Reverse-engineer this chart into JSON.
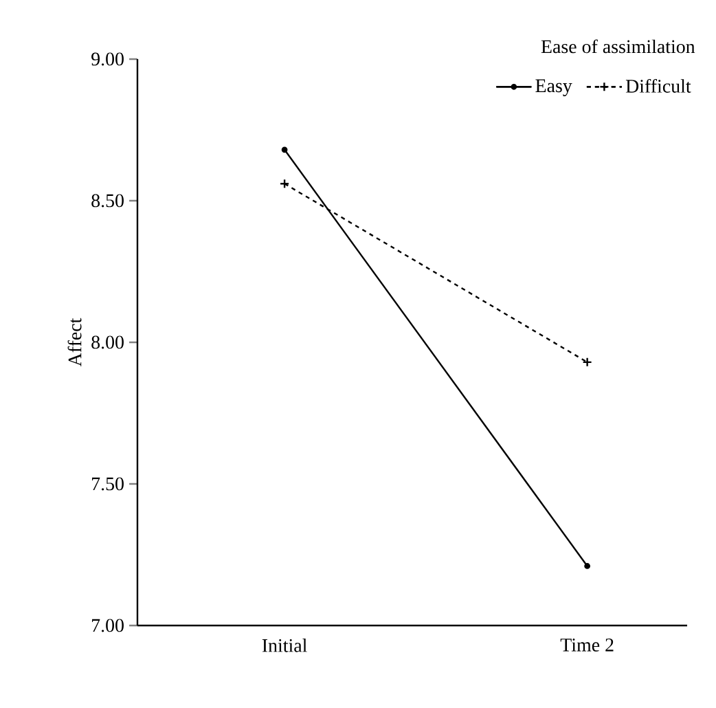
{
  "chart_data": {
    "type": "line",
    "ylabel": "Affect",
    "legend_title": "Ease of assimilation",
    "legend": "top right",
    "grid": false,
    "categories": [
      "Initial",
      "Time 2"
    ],
    "ylim": [
      7,
      9
    ],
    "yticks": [
      {
        "value": 7,
        "label": "7.00"
      },
      {
        "value": 7.5,
        "label": "7.50"
      },
      {
        "value": 8,
        "label": "8.00"
      },
      {
        "value": 8.5,
        "label": "8.50"
      },
      {
        "value": 9,
        "label": "9.00"
      }
    ],
    "series": [
      {
        "name": "Easy",
        "color": "#000000",
        "marker": "circle",
        "line_style": "solid",
        "values": [
          8.68,
          7.21
        ]
      },
      {
        "name": "Difficult",
        "color": "#000000",
        "marker": "cross",
        "line_style": "dashed",
        "values": [
          8.56,
          7.93
        ]
      }
    ]
  }
}
